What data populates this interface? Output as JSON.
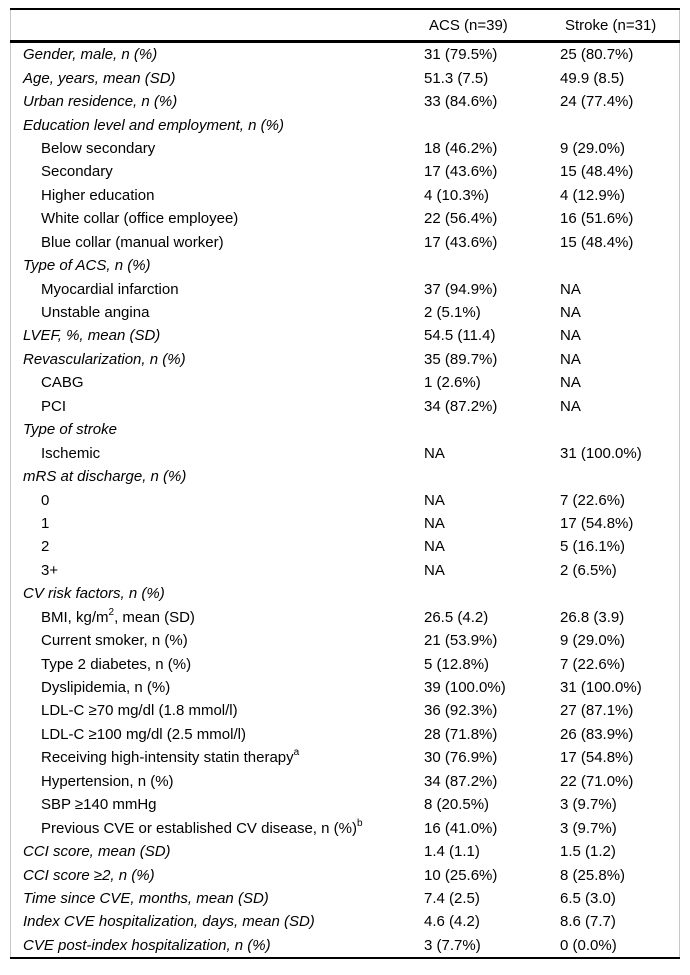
{
  "colors": {
    "rule": "#000000",
    "side_frame": "#c8c8c8",
    "text": "#000000",
    "background": "#ffffff"
  },
  "table": {
    "header": {
      "label_col": "",
      "acs": "ACS (n=39)",
      "stroke": "Stroke (n=31)"
    },
    "rows": [
      {
        "label": "Gender, male, n (%)",
        "italic": true,
        "indent": 0,
        "acs": "31 (79.5%)",
        "stroke": "25 (80.7%)"
      },
      {
        "label": "Age, years, mean (SD)",
        "italic": true,
        "indent": 0,
        "acs": "51.3 (7.5)",
        "stroke": "49.9 (8.5)"
      },
      {
        "label": "Urban residence, n (%)",
        "italic": true,
        "indent": 0,
        "acs": "33 (84.6%)",
        "stroke": "24 (77.4%)"
      },
      {
        "label": "Education level and employment, n (%)",
        "italic": true,
        "indent": 0,
        "acs": "",
        "stroke": ""
      },
      {
        "label": "Below secondary",
        "italic": false,
        "indent": 1,
        "acs": "18 (46.2%)",
        "stroke": "9 (29.0%)"
      },
      {
        "label": "Secondary",
        "italic": false,
        "indent": 1,
        "acs": "17 (43.6%)",
        "stroke": "15 (48.4%)"
      },
      {
        "label": "Higher education",
        "italic": false,
        "indent": 1,
        "acs": "4 (10.3%)",
        "stroke": "4 (12.9%)"
      },
      {
        "label": "White collar (office employee)",
        "italic": false,
        "indent": 1,
        "acs": "22 (56.4%)",
        "stroke": "16 (51.6%)"
      },
      {
        "label": "Blue collar (manual worker)",
        "italic": false,
        "indent": 1,
        "acs": "17 (43.6%)",
        "stroke": "15 (48.4%)"
      },
      {
        "label": "Type of ACS, n (%)",
        "italic": true,
        "indent": 0,
        "acs": "",
        "stroke": ""
      },
      {
        "label": "Myocardial infarction",
        "italic": false,
        "indent": 1,
        "acs": "37 (94.9%)",
        "stroke": "NA"
      },
      {
        "label": "Unstable angina",
        "italic": false,
        "indent": 1,
        "acs": "2 (5.1%)",
        "stroke": "NA"
      },
      {
        "label": "LVEF, %, mean (SD)",
        "italic": true,
        "indent": 0,
        "acs": "54.5 (11.4)",
        "stroke": "NA"
      },
      {
        "label": "Revascularization, n (%)",
        "italic": true,
        "indent": 0,
        "acs": "35 (89.7%)",
        "stroke": "NA"
      },
      {
        "label": "CABG",
        "italic": false,
        "indent": 1,
        "acs": "1 (2.6%)",
        "stroke": "NA"
      },
      {
        "label": "PCI",
        "italic": false,
        "indent": 1,
        "acs": "34 (87.2%)",
        "stroke": "NA"
      },
      {
        "label": "Type of stroke",
        "italic": true,
        "indent": 0,
        "acs": "",
        "stroke": ""
      },
      {
        "label": "Ischemic",
        "italic": false,
        "indent": 1,
        "acs": "NA",
        "stroke": "31 (100.0%)"
      },
      {
        "label": "mRS at discharge, n (%)",
        "italic": true,
        "indent": 0,
        "acs": "",
        "stroke": ""
      },
      {
        "label": "0",
        "italic": false,
        "indent": 1,
        "acs": "NA",
        "stroke": "7 (22.6%)"
      },
      {
        "label": "1",
        "italic": false,
        "indent": 1,
        "acs": "NA",
        "stroke": "17 (54.8%)"
      },
      {
        "label": "2",
        "italic": false,
        "indent": 1,
        "acs": "NA",
        "stroke": "5 (16.1%)"
      },
      {
        "label": "3+",
        "italic": false,
        "indent": 1,
        "acs": "NA",
        "stroke": "2 (6.5%)"
      },
      {
        "label": "CV risk factors, n (%)",
        "italic": true,
        "indent": 0,
        "acs": "",
        "stroke": ""
      },
      {
        "label": "BMI, kg/m",
        "sup": "2",
        "label_post": ", mean (SD)",
        "italic": false,
        "indent": 1,
        "acs": "26.5 (4.2)",
        "stroke": "26.8 (3.9)"
      },
      {
        "label": "Current smoker, n (%)",
        "italic": false,
        "indent": 1,
        "acs": "21 (53.9%)",
        "stroke": "9 (29.0%)"
      },
      {
        "label": "Type 2 diabetes, n (%)",
        "italic": false,
        "indent": 1,
        "acs": "5 (12.8%)",
        "stroke": "7 (22.6%)"
      },
      {
        "label": "Dyslipidemia, n (%)",
        "italic": false,
        "indent": 1,
        "acs": "39 (100.0%)",
        "stroke": "31 (100.0%)"
      },
      {
        "label": "LDL-C ≥70 mg/dl (1.8 mmol/l)",
        "italic": false,
        "indent": 1,
        "acs": "36 (92.3%)",
        "stroke": "27 (87.1%)"
      },
      {
        "label": "LDL-C ≥100 mg/dl (2.5 mmol/l)",
        "italic": false,
        "indent": 1,
        "acs": "28 (71.8%)",
        "stroke": "26 (83.9%)"
      },
      {
        "label": "Receiving high-intensity statin therapy",
        "sup": "a",
        "label_post": "",
        "italic": false,
        "indent": 1,
        "acs": "30 (76.9%)",
        "stroke": "17 (54.8%)"
      },
      {
        "label": "Hypertension, n (%)",
        "italic": false,
        "indent": 1,
        "acs": "34 (87.2%)",
        "stroke": "22 (71.0%)"
      },
      {
        "label": "SBP ≥140 mmHg",
        "italic": false,
        "indent": 1,
        "acs": "8 (20.5%)",
        "stroke": "3 (9.7%)"
      },
      {
        "label": "Previous CVE or established CV disease, n (%)",
        "sup": "b",
        "label_post": "",
        "italic": false,
        "indent": 1,
        "acs": "16 (41.0%)",
        "stroke": "3 (9.7%)"
      },
      {
        "label": "CCI score, mean (SD)",
        "italic": true,
        "indent": 0,
        "acs": "1.4 (1.1)",
        "stroke": "1.5 (1.2)"
      },
      {
        "label": "CCI score ≥2, n (%)",
        "italic": true,
        "indent": 0,
        "acs": "10 (25.6%)",
        "stroke": "8 (25.8%)"
      },
      {
        "label": "Time since CVE, months, mean (SD)",
        "italic": true,
        "indent": 0,
        "acs": "7.4 (2.5)",
        "stroke": "6.5 (3.0)"
      },
      {
        "label": "Index CVE hospitalization, days, mean (SD)",
        "italic": true,
        "indent": 0,
        "acs": "4.6 (4.2)",
        "stroke": "8.6 (7.7)"
      },
      {
        "label": "CVE post-index hospitalization, n (%)",
        "italic": true,
        "indent": 0,
        "acs": "3 (7.7%)",
        "stroke": "0 (0.0%)"
      }
    ]
  }
}
